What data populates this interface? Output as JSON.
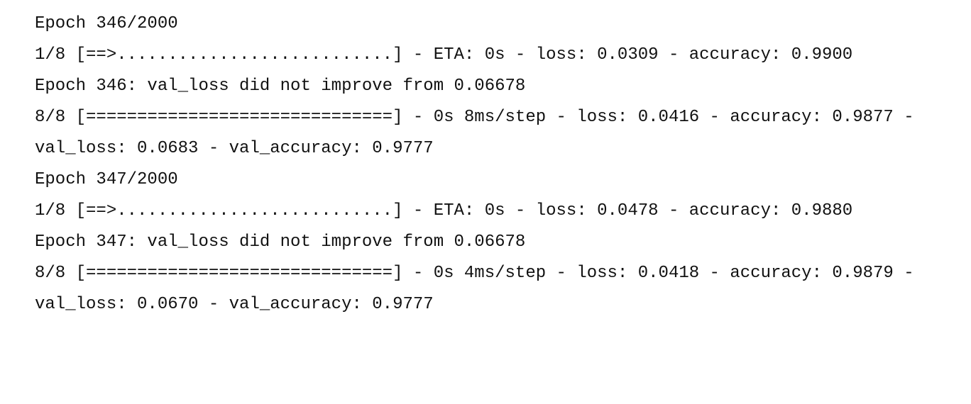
{
  "lines": [
    "Epoch 346/2000",
    "1/8 [==>...........................] - ETA: 0s - loss: 0.0309 - accuracy: 0.9900",
    "Epoch 346: val_loss did not improve from 0.06678",
    "8/8 [==============================] - 0s 8ms/step - loss: 0.0416 - accuracy: 0.9877 -",
    "val_loss: 0.0683 - val_accuracy: 0.9777",
    "Epoch 347/2000",
    "1/8 [==>...........................] - ETA: 0s - loss: 0.0478 - accuracy: 0.9880",
    "Epoch 347: val_loss did not improve from 0.06678",
    "8/8 [==============================] - 0s 4ms/step - loss: 0.0418 - accuracy: 0.9879 -",
    "val_loss: 0.0670 - val_accuracy: 0.9777"
  ]
}
